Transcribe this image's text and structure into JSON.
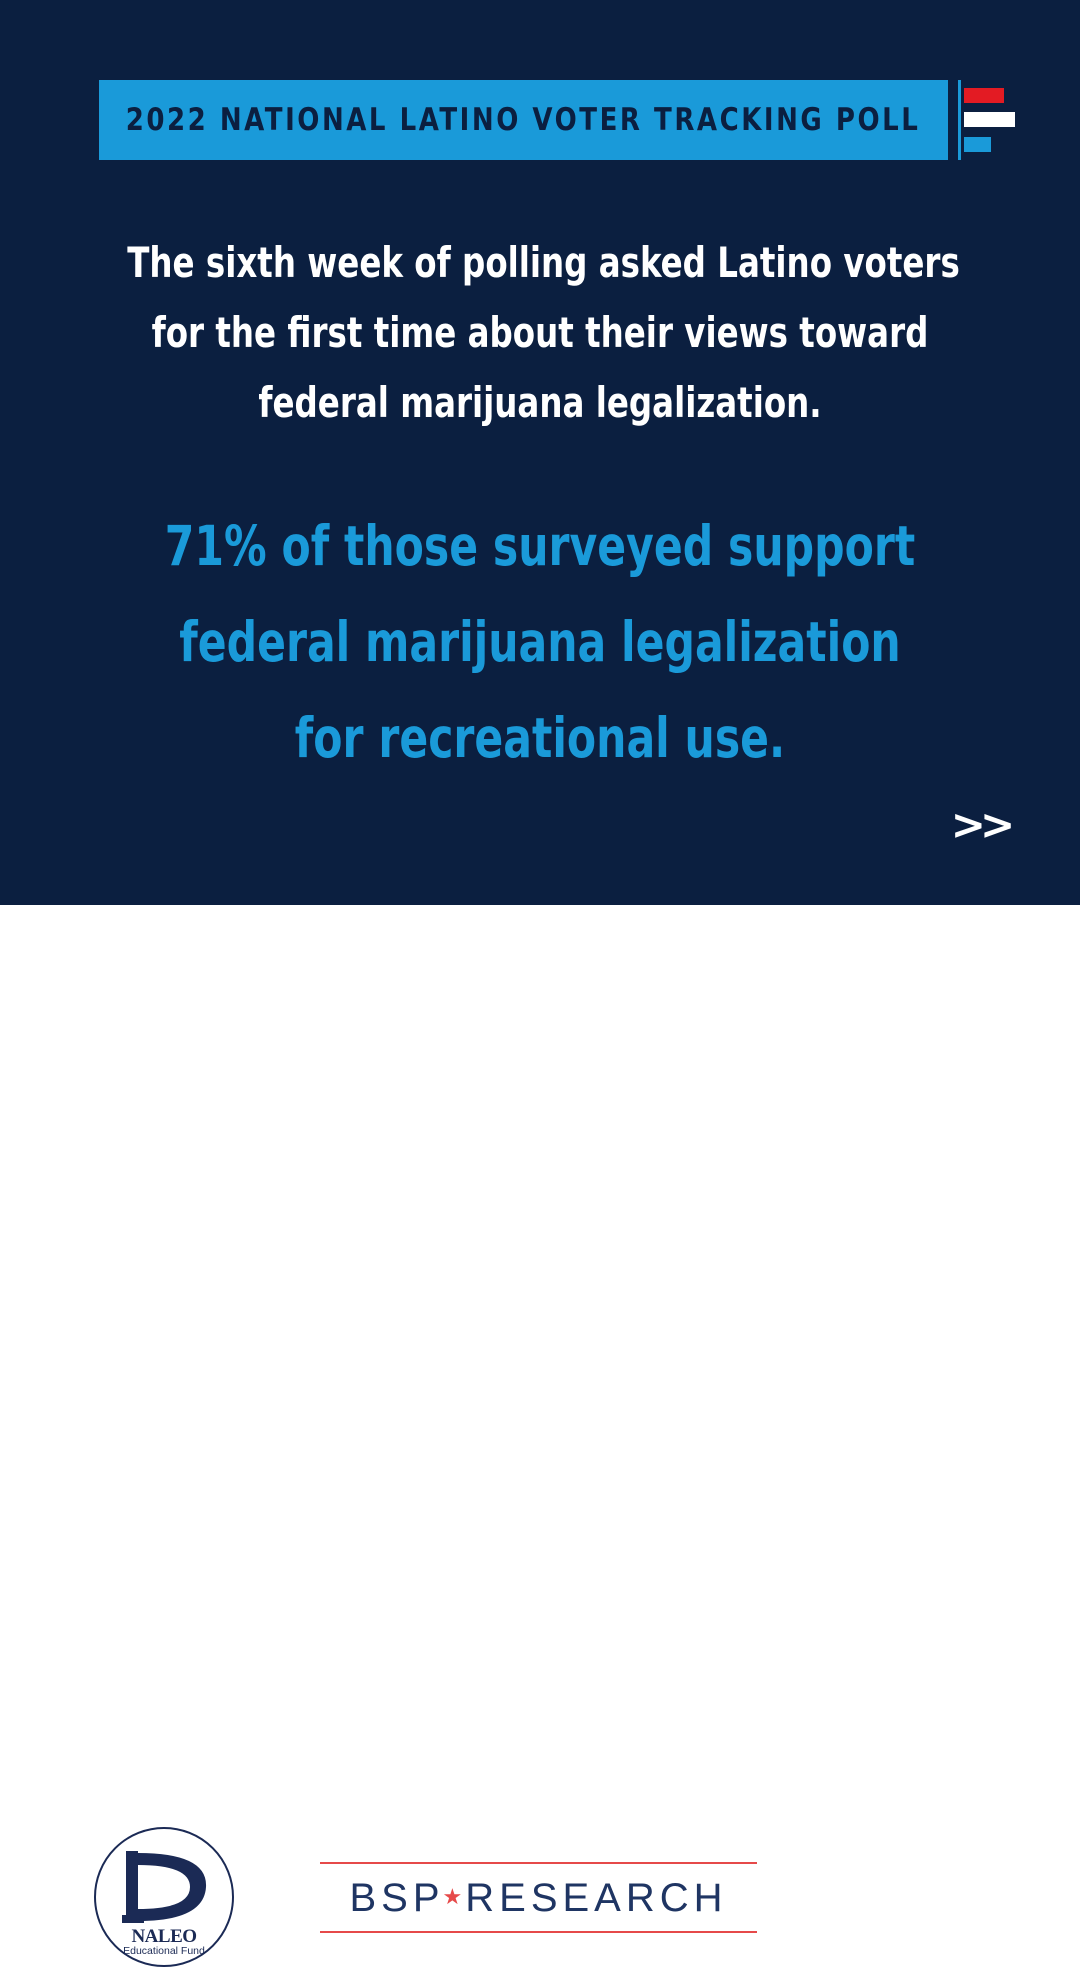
{
  "banner": {
    "title": "2022 NATIONAL LATINO VOTER TRACKING POLL"
  },
  "intro": {
    "lines": [
      "The sixth week of polling asked Latino voters",
      "for the first time about their views toward",
      "federal marijuana legalization."
    ]
  },
  "stat": {
    "lines": [
      "71% of those surveyed support",
      "federal marijuana legalization",
      "for recreational use."
    ]
  },
  "navigation": {
    "next_label": ">>"
  },
  "logos": {
    "naleo_name": "NALEO",
    "naleo_sub": "Educational Fund",
    "bsp_left": "BSP",
    "bsp_star": "★",
    "bsp_right": "RESEARCH"
  },
  "colors": {
    "background_navy": "#0b1f40",
    "accent_blue": "#1a9ad9",
    "accent_red": "#e31b23",
    "text_white": "#ffffff",
    "footer_white": "#ffffff"
  }
}
